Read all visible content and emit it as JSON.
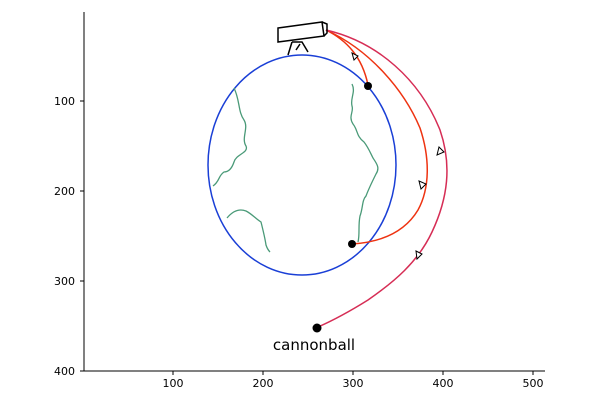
{
  "axes": {
    "x_ticks": [
      "100",
      "200",
      "300",
      "400",
      "500"
    ],
    "y_ticks": [
      "100",
      "200",
      "300",
      "400"
    ]
  },
  "labels": {
    "cannonball": "cannonball"
  },
  "colors": {
    "earth_outline": "#1a3fd6",
    "coastline": "#4a9a78",
    "short_orbit": "#ee3311",
    "long_orbit": "#d62d55",
    "cannon": "#000000"
  },
  "icons": {
    "cannon": "cannon-icon",
    "direction_arrow": "arrowhead-icon"
  }
}
